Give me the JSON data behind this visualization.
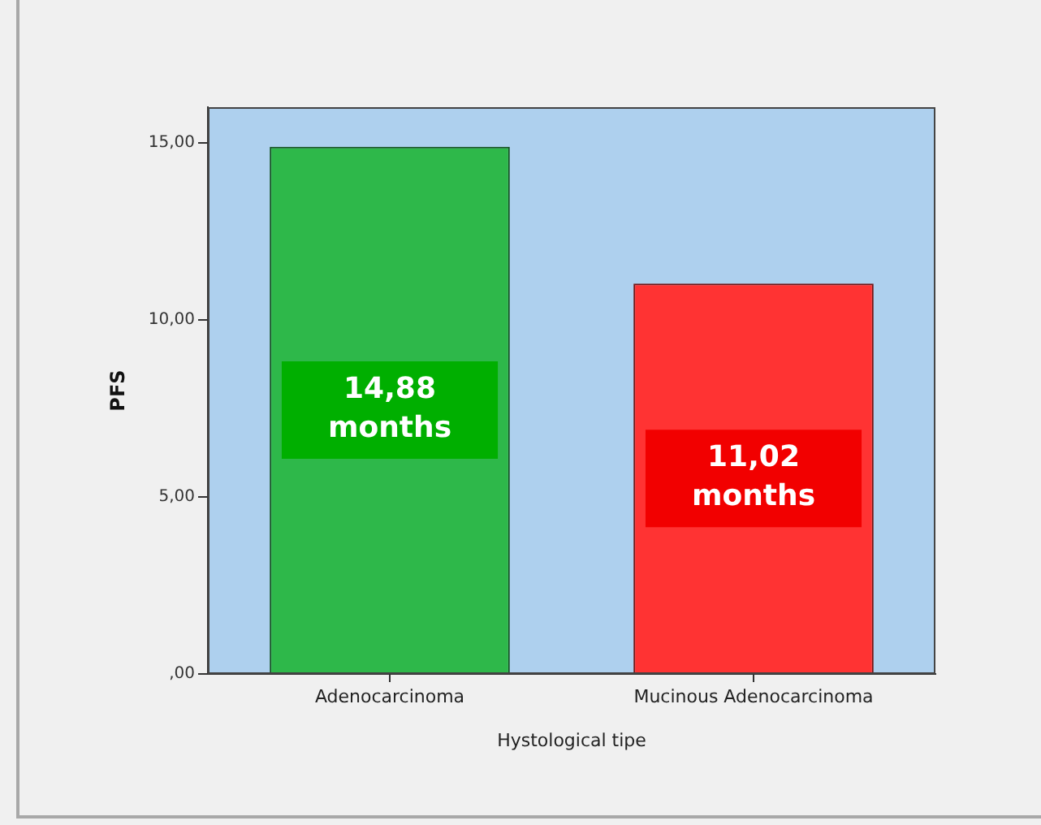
{
  "chart_data": {
    "type": "bar",
    "xlabel": "Hystological tipe",
    "ylabel": "PFS",
    "categories": [
      "Adenocarcinoma",
      "Mucinous Adenocarcinoma"
    ],
    "values": [
      14.88,
      11.02
    ],
    "colors": [
      "#2eb84a",
      "#ff3333"
    ],
    "value_labels": [
      "14,88 months",
      "11,02 months"
    ],
    "ylim": [
      0,
      16
    ],
    "yticks": [
      {
        "value": 0,
        "label": ",00"
      },
      {
        "value": 5,
        "label": "5,00"
      },
      {
        "value": 10,
        "label": "10,00"
      },
      {
        "value": 15,
        "label": "15,00"
      }
    ]
  }
}
